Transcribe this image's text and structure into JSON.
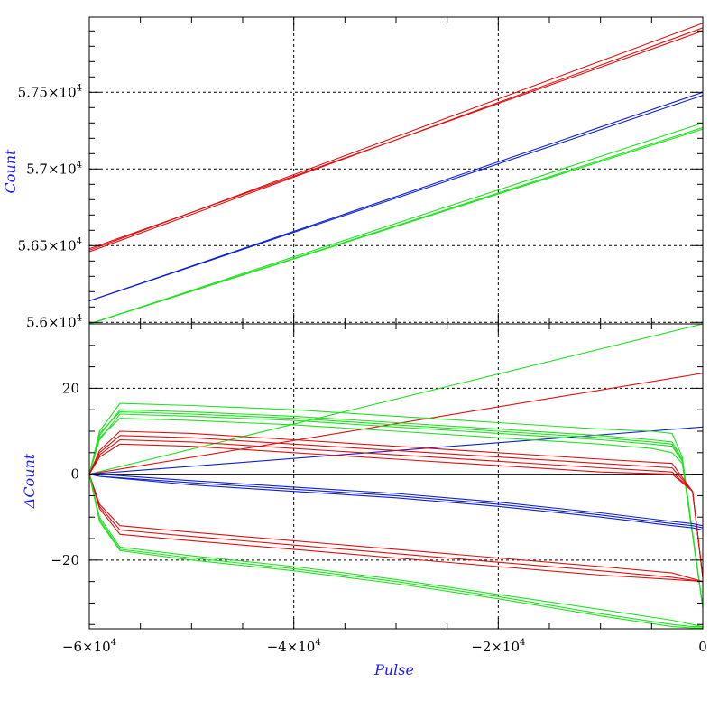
{
  "colors": {
    "red": "#e01010",
    "green": "#22e022",
    "blue": "#1020d0",
    "frame": "#000000",
    "grid": "#000000",
    "title": "#2020ff"
  },
  "chart_data": [
    {
      "panel": "top",
      "type": "line",
      "ylabel": "Count",
      "xlim": [
        -60000,
        0
      ],
      "ylim": [
        55990,
        57990
      ],
      "grid": "dotted",
      "y_tick_values": [
        56000,
        56500,
        57000,
        57500
      ],
      "y_tick_labels": [
        {
          "m": "5.6",
          "e": "4"
        },
        {
          "m": "5.65",
          "e": "4"
        },
        {
          "m": "5.7",
          "e": "4"
        },
        {
          "m": "5.75",
          "e": "4"
        }
      ],
      "series": [
        {
          "color": "red",
          "x": [
            -60000,
            0
          ],
          "y": [
            56460,
            57920
          ]
        },
        {
          "color": "red",
          "x": [
            -60000,
            0
          ],
          "y": [
            56470,
            57950
          ]
        },
        {
          "color": "red",
          "x": [
            -60000,
            0
          ],
          "y": [
            56480,
            57900
          ]
        },
        {
          "color": "blue",
          "x": [
            -60000,
            0
          ],
          "y": [
            56140,
            57500
          ]
        },
        {
          "color": "blue",
          "x": [
            -60000,
            0
          ],
          "y": [
            56140,
            57480
          ]
        },
        {
          "color": "green",
          "x": [
            -60000,
            0
          ],
          "y": [
            55990,
            57300
          ]
        },
        {
          "color": "green",
          "x": [
            -60000,
            0
          ],
          "y": [
            55990,
            57270
          ]
        },
        {
          "color": "green",
          "x": [
            -60000,
            0
          ],
          "y": [
            55990,
            57260
          ]
        }
      ]
    },
    {
      "panel": "bottom",
      "type": "line",
      "ylabel": "ΔCount",
      "xlabel": "Pulse",
      "xlim": [
        -60000,
        0
      ],
      "ylim": [
        -36,
        35
      ],
      "grid": "dotted",
      "y_tick_values": [
        -20,
        0,
        20
      ],
      "y_tick_labels": [
        "−20",
        "0",
        "20"
      ],
      "x_tick_values": [
        -60000,
        -40000,
        -20000,
        0
      ],
      "x_tick_labels": [
        {
          "m": "−6×10",
          "e": "4"
        },
        {
          "m": "−4×10",
          "e": "4"
        },
        {
          "m": "−2×10",
          "e": "4"
        },
        {
          "m": "0",
          "e": ""
        }
      ],
      "zero_line": true,
      "series": [
        {
          "color": "green",
          "x": [
            -60000,
            0
          ],
          "y": [
            0,
            35
          ]
        },
        {
          "color": "red",
          "x": [
            -60000,
            0
          ],
          "y": [
            0,
            23.5
          ]
        },
        {
          "color": "blue",
          "x": [
            -60000,
            0
          ],
          "y": [
            0,
            11
          ]
        },
        {
          "color": "green",
          "x": [
            -60000,
            -59000,
            -57000,
            -50000,
            -40000,
            -30000,
            -20000,
            -10000,
            -5000,
            -3000,
            -2000,
            0
          ],
          "y": [
            0,
            8,
            14,
            13.5,
            12.5,
            11,
            9.5,
            8,
            7,
            6.5,
            3,
            -31
          ]
        },
        {
          "color": "green",
          "x": [
            -60000,
            -59000,
            -57000,
            -50000,
            -40000,
            -30000,
            -20000,
            -10000,
            -5000,
            -3000,
            -2000,
            0
          ],
          "y": [
            0,
            9,
            15,
            14.5,
            13.5,
            12,
            10.5,
            9,
            8,
            7.5,
            3.5,
            -31
          ]
        },
        {
          "color": "green",
          "x": [
            -60000,
            -59000,
            -57000,
            -50000,
            -40000,
            -30000,
            -20000,
            -10000,
            -5000,
            -3000,
            -2000,
            0
          ],
          "y": [
            0,
            10,
            16.5,
            16,
            15,
            13.5,
            12,
            10.5,
            10,
            9.5,
            4,
            -31
          ]
        },
        {
          "color": "green",
          "x": [
            -60000,
            -59000,
            -57000,
            -50000,
            -40000,
            -30000,
            -20000,
            -10000,
            -5000,
            -3000,
            -2000,
            0
          ],
          "y": [
            0,
            8.5,
            13,
            12.5,
            11.5,
            10,
            8.5,
            7,
            6,
            5,
            2.5,
            -31
          ]
        },
        {
          "color": "green",
          "x": [
            -60000,
            -59000,
            -57000,
            -50000,
            -40000,
            -30000,
            -20000,
            -10000,
            -5000,
            -3000,
            -2000,
            0
          ],
          "y": [
            0,
            9.5,
            14.5,
            14,
            13,
            11.5,
            10,
            8.5,
            7.5,
            7,
            3,
            -31
          ]
        },
        {
          "color": "red",
          "x": [
            -60000,
            -59000,
            -57000,
            -50000,
            -40000,
            -30000,
            -20000,
            -10000,
            -3000,
            -1000,
            0
          ],
          "y": [
            0,
            5,
            9,
            8.5,
            7,
            5.5,
            4,
            2.5,
            1.5,
            -4,
            -24
          ]
        },
        {
          "color": "red",
          "x": [
            -60000,
            -59000,
            -57000,
            -50000,
            -40000,
            -30000,
            -20000,
            -10000,
            -3000,
            -1000,
            0
          ],
          "y": [
            0,
            4.5,
            8,
            7.5,
            6,
            4.5,
            3,
            1.5,
            0.5,
            -4,
            -24
          ]
        },
        {
          "color": "red",
          "x": [
            -60000,
            -59000,
            -57000,
            -50000,
            -40000,
            -30000,
            -20000,
            -10000,
            -3000,
            -1000,
            0
          ],
          "y": [
            0,
            4,
            7,
            6.5,
            5,
            3.5,
            2,
            0.5,
            0,
            -4,
            -24
          ]
        },
        {
          "color": "red",
          "x": [
            -60000,
            -59000,
            -57000,
            -50000,
            -40000,
            -30000,
            -20000,
            -10000,
            -3000,
            -1000,
            0
          ],
          "y": [
            0,
            5.5,
            10,
            9.5,
            8,
            6.5,
            5,
            3.5,
            2.5,
            -4,
            -24
          ]
        },
        {
          "color": "blue",
          "x": [
            -60000,
            -59000,
            -50000,
            -40000,
            -30000,
            -20000,
            -10000,
            -3000,
            -1000,
            0
          ],
          "y": [
            0,
            -0.5,
            -2,
            -3.5,
            -5,
            -7,
            -9.5,
            -11.5,
            -12,
            -12.5
          ]
        },
        {
          "color": "blue",
          "x": [
            -60000,
            -59000,
            -50000,
            -40000,
            -30000,
            -20000,
            -10000,
            -3000,
            -1000,
            0
          ],
          "y": [
            0,
            -0.5,
            -2.5,
            -4,
            -5.5,
            -7.5,
            -10,
            -12,
            -12.5,
            -13
          ]
        },
        {
          "color": "blue",
          "x": [
            -60000,
            -59000,
            -50000,
            -40000,
            -30000,
            -20000,
            -10000,
            -3000,
            -1000,
            0
          ],
          "y": [
            0,
            0,
            -1.5,
            -3,
            -4.5,
            -6.5,
            -9,
            -11,
            -11.5,
            -12
          ]
        },
        {
          "color": "red",
          "x": [
            -60000,
            -59000,
            -57000,
            -50000,
            -40000,
            -30000,
            -20000,
            -10000,
            -3000,
            0
          ],
          "y": [
            0,
            -7,
            -12,
            -13.5,
            -15.5,
            -17.5,
            -19.5,
            -21.5,
            -23,
            -25
          ]
        },
        {
          "color": "red",
          "x": [
            -60000,
            -59000,
            -57000,
            -50000,
            -40000,
            -30000,
            -20000,
            -10000,
            -3000,
            0
          ],
          "y": [
            0,
            -7.5,
            -13,
            -14.5,
            -16.5,
            -18.5,
            -20.5,
            -22.5,
            -24,
            -25
          ]
        },
        {
          "color": "red",
          "x": [
            -60000,
            -59000,
            -57000,
            -50000,
            -40000,
            -30000,
            -20000,
            -10000,
            -3000,
            0
          ],
          "y": [
            0,
            -8,
            -14,
            -15.5,
            -17.5,
            -19.5,
            -21.5,
            -23.5,
            -24.5,
            -25
          ]
        },
        {
          "color": "green",
          "x": [
            -60000,
            -59000,
            -57000,
            -50000,
            -40000,
            -30000,
            -20000,
            -10000,
            -3000,
            -1000,
            0
          ],
          "y": [
            0,
            -10,
            -17,
            -19,
            -21.5,
            -24.5,
            -28,
            -31.5,
            -34,
            -35,
            -35.5
          ]
        },
        {
          "color": "green",
          "x": [
            -60000,
            -59000,
            -57000,
            -50000,
            -40000,
            -30000,
            -20000,
            -10000,
            -3000,
            -1000,
            0
          ],
          "y": [
            0,
            -10.5,
            -17.5,
            -19.5,
            -22,
            -25,
            -28.5,
            -32.5,
            -35,
            -35.5,
            -35.5
          ]
        },
        {
          "color": "green",
          "x": [
            -60000,
            -59000,
            -57000,
            -50000,
            -40000,
            -30000,
            -20000,
            -10000,
            -3000,
            -1000,
            0
          ],
          "y": [
            0,
            -11,
            -17.8,
            -20,
            -22.5,
            -25.5,
            -29,
            -33,
            -35.5,
            -35.8,
            -35.8
          ]
        }
      ]
    }
  ]
}
